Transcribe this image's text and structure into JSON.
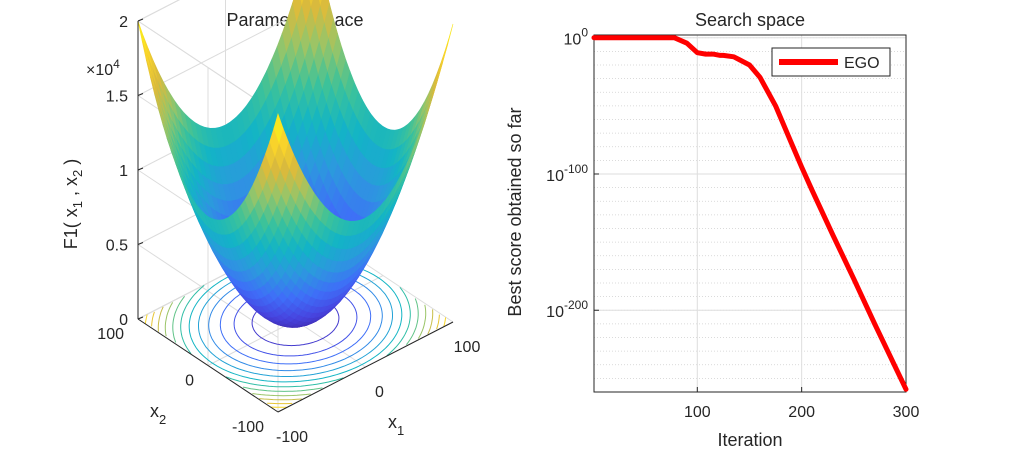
{
  "chart_data": [
    {
      "type": "surface",
      "title": "Parameter space",
      "function": "x1^2 + x2^2",
      "xlabel": {
        "base": "x",
        "sub": "1"
      },
      "ylabel": {
        "base": "x",
        "sub": "2"
      },
      "zlabel": {
        "prefix": "F1( x",
        "sub1": "1",
        "mid": " , x",
        "sub2": "2",
        "suffix": " )"
      },
      "xlim": [
        -100,
        100
      ],
      "ylim": [
        -100,
        100
      ],
      "zlim": [
        0,
        20000
      ],
      "x_ticks": [
        "-100",
        "0",
        "100"
      ],
      "y_ticks": [
        "-100",
        "0",
        "100"
      ],
      "z_ticks": [
        "0",
        "0.5",
        "1",
        "1.5",
        "2"
      ],
      "z_multiplier": {
        "prefix": "×10",
        "exponent": "4"
      },
      "contour_levels": [
        1500,
        3000,
        4500,
        6000,
        7500,
        9000,
        10500,
        12000,
        13500,
        15000,
        16500,
        18000,
        19500
      ],
      "colormap": [
        "#3e26a8",
        "#4745e0",
        "#3f6ef8",
        "#2d97df",
        "#12b4c6",
        "#3cc29a",
        "#95c56a",
        "#d9ba3d",
        "#f9d32b",
        "#f9fb15"
      ],
      "grid": true
    },
    {
      "type": "line",
      "title": "Search space",
      "xlabel": "Iteration",
      "ylabel": "Best score obtained so far",
      "yscale": "log",
      "xlim": [
        1,
        300
      ],
      "ylim_exponent": [
        -260,
        2
      ],
      "x_ticks": [
        "100",
        "200",
        "300"
      ],
      "y_ticks": [
        {
          "base": "10",
          "exp": "0"
        },
        {
          "base": "10",
          "exp": "-100"
        },
        {
          "base": "10",
          "exp": "-200"
        }
      ],
      "grid": true,
      "legend_position": "top-right",
      "series": [
        {
          "name": "EGO",
          "color": "#ff0000",
          "x": [
            1,
            20,
            40,
            60,
            78,
            90,
            100,
            108,
            115,
            122,
            125,
            135,
            140,
            150,
            160,
            175,
            190,
            200,
            210,
            230,
            250,
            270,
            300
          ],
          "log10_y": [
            3,
            2,
            1.5,
            1,
            0.5,
            -4,
            -11,
            -12,
            -12,
            -13,
            -13,
            -14,
            -16,
            -20,
            -29,
            -50,
            -77,
            -95,
            -112,
            -145,
            -177,
            -210,
            -258
          ]
        }
      ]
    }
  ]
}
